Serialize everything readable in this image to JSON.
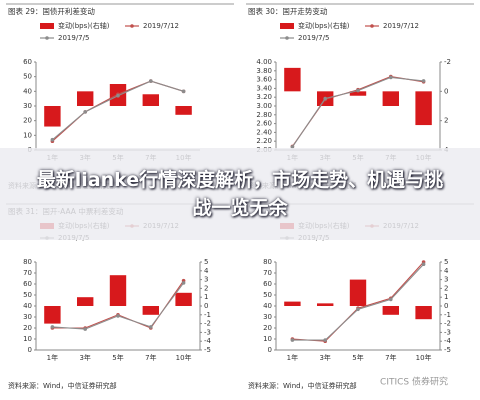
{
  "chart_data": [
    {
      "type": "combo",
      "title": "图表 29：国债开利差变动",
      "categories": [
        "1年",
        "3年",
        "5年",
        "7年",
        "10年"
      ],
      "ylim": [
        0,
        60
      ],
      "yticks": [
        0,
        10,
        20,
        30,
        40,
        50,
        60
      ],
      "y2lim": [
        -6,
        6
      ],
      "series": [
        {
          "name": "变动(bps)(右轴)",
          "color": "#d7191c",
          "type": "bar",
          "axis": "y2",
          "values": [
            -2.8,
            2,
            3,
            1.6,
            -1.2
          ]
        },
        {
          "name": "2019/7/12",
          "color": "#c0504d",
          "values": [
            6,
            26,
            38,
            47,
            40
          ]
        },
        {
          "name": "2019/7/5",
          "color": "#8c8c8c",
          "values": [
            7,
            26,
            37,
            47,
            40
          ]
        }
      ],
      "source": "资料来源：Wind，中信证券研究部"
    },
    {
      "type": "combo",
      "title": "图表 30：国开走势变动",
      "categories": [
        "1年",
        "3年",
        "5年",
        "7年",
        "10年"
      ],
      "ylim": [
        2,
        4
      ],
      "yticks": [
        {
          "value": 2,
          "label": "2.00"
        },
        {
          "value": 2.2,
          "label": "2.20"
        },
        {
          "value": 2.4,
          "label": "2.40"
        },
        {
          "value": 2.6,
          "label": "2.60"
        },
        {
          "value": 2.8,
          "label": "2.80"
        },
        {
          "value": 3,
          "label": "3.00"
        },
        {
          "value": 3.2,
          "label": "3.20"
        },
        {
          "value": 3.4,
          "label": "3.40"
        },
        {
          "value": 3.6,
          "label": "3.60"
        },
        {
          "value": 3.8,
          "label": "3.80"
        },
        {
          "value": 4,
          "label": "4.00"
        }
      ],
      "y2lim": [
        -2,
        4
      ],
      "y2ticks": [
        -2,
        0,
        2,
        4
      ],
      "y2_inverted": true,
      "series": [
        {
          "name": "变动(bps)(右轴)",
          "color": "#d7191c",
          "type": "bar",
          "axis": "y2",
          "values": [
            -1.6,
            1,
            0.3,
            1,
            2.3
          ]
        },
        {
          "name": "2019/7/12",
          "color": "#c0504d",
          "values": [
            2.08,
            3.15,
            3.37,
            3.67,
            3.55
          ]
        },
        {
          "name": "2019/7/5",
          "color": "#8c8c8c",
          "values": [
            2.07,
            3.17,
            3.35,
            3.65,
            3.57
          ]
        }
      ],
      "source": "资料来源：Wind，中信证券研究部"
    },
    {
      "type": "combo",
      "title": "图表 31：国开-AAA 中票利差变动",
      "categories": [
        "1年",
        "3年",
        "5年",
        "7年",
        "10年"
      ],
      "ylim": [
        0,
        80
      ],
      "yticks": [
        0,
        10,
        20,
        30,
        40,
        50,
        60,
        70,
        80
      ],
      "y2lim": [
        -5,
        5
      ],
      "y2ticks": [
        -5,
        -4,
        -3,
        -2,
        -1,
        0,
        1,
        2,
        3,
        4,
        5
      ],
      "series": [
        {
          "name": "变动(bps)(右轴)",
          "color": "#d7191c",
          "type": "bar",
          "axis": "y2",
          "values": [
            -2,
            1,
            3.5,
            -1,
            1.5
          ]
        },
        {
          "name": "2019/7/12",
          "color": "#c0504d",
          "values": [
            20,
            20,
            32,
            20,
            63
          ]
        },
        {
          "name": "2019/7/5",
          "color": "#8c8c8c",
          "values": [
            21,
            19,
            31,
            21,
            61
          ]
        }
      ],
      "source": "资料来源：Wind，中信证券研究部"
    },
    {
      "type": "combo",
      "categories": [
        "1年",
        "3年",
        "5年",
        "7年",
        "10年"
      ],
      "ylim": [
        0,
        80
      ],
      "yticks": [
        0,
        10,
        20,
        30,
        40,
        50,
        60,
        70,
        80
      ],
      "y2lim": [
        -5,
        5
      ],
      "y2ticks": [
        -5,
        -4,
        -3,
        -2,
        -1,
        0,
        1,
        2,
        3,
        4,
        5
      ],
      "series": [
        {
          "name": "变动(bps)(右轴)",
          "color": "#d7191c",
          "type": "bar",
          "axis": "y2",
          "values": [
            0.5,
            0.3,
            3,
            -1,
            -1.5
          ]
        },
        {
          "name": "2019/7/12",
          "color": "#c0504d",
          "values": [
            10,
            8,
            38,
            47,
            80
          ]
        },
        {
          "name": "2019/7/5",
          "color": "#8c8c8c",
          "values": [
            9,
            9,
            37,
            46,
            78
          ]
        }
      ],
      "source": "资料来源：Wind，中信证券研究部"
    }
  ],
  "banner": "最新lianke行情深度解析，市场走势、机遇与挑战一览无余",
  "watermark": "CITICS 债券研究"
}
